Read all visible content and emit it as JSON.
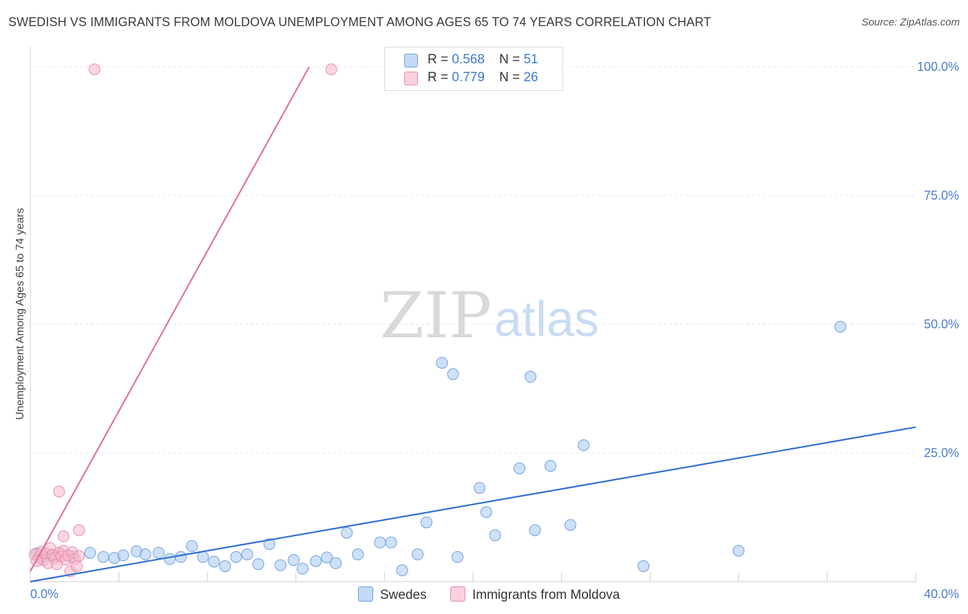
{
  "header": {
    "title": "SWEDISH VS IMMIGRANTS FROM MOLDOVA UNEMPLOYMENT AMONG AGES 65 TO 74 YEARS CORRELATION CHART",
    "source": "Source: ZipAtlas.com"
  },
  "watermark": {
    "zip": "ZIP",
    "atlas": "atlas"
  },
  "legend": {
    "r_label": "R =",
    "n_label": "N =",
    "series": [
      {
        "name": "Swedes",
        "r": "0.568",
        "n": "51",
        "color": "#a8c8f0",
        "edge": "#6b9ee0"
      },
      {
        "name": "Immigrants from Moldova",
        "r": "0.779",
        "n": "26",
        "color": "#f7b6c8",
        "edge": "#e88aa8"
      }
    ]
  },
  "chart_data": {
    "type": "scatter",
    "title": "SWEDISH VS IMMIGRANTS FROM MOLDOVA UNEMPLOYMENT AMONG AGES 65 TO 74 YEARS CORRELATION CHART",
    "xlabel": "",
    "ylabel": "Unemployment Among Ages 65 to 74 years",
    "xlim": [
      0,
      40
    ],
    "ylim": [
      0,
      100
    ],
    "x_tick_labels": [
      "0.0%",
      "40.0%"
    ],
    "y_tick_labels": [
      "25.0%",
      "50.0%",
      "75.0%",
      "100.0%"
    ],
    "y_ticks": [
      25,
      50,
      75,
      100
    ],
    "x_gridlines": [
      4,
      8,
      12,
      16,
      20,
      24,
      28,
      32,
      36,
      40
    ],
    "grid": true,
    "legend_position": "top-center",
    "series": [
      {
        "name": "Swedes",
        "color": "#a8c8f0",
        "edge": "#6b9ee0",
        "trend": {
          "x": [
            0,
            40
          ],
          "y": [
            0,
            30
          ],
          "color": "#2f6fd0"
        },
        "points": [
          [
            0.3,
            5.5
          ],
          [
            0.6,
            4.8
          ],
          [
            0.9,
            5.2
          ],
          [
            1.3,
            5.6
          ],
          [
            1.9,
            4.9
          ],
          [
            2.7,
            5.6
          ],
          [
            3.3,
            4.8
          ],
          [
            3.8,
            4.6
          ],
          [
            4.2,
            5.1
          ],
          [
            4.8,
            5.9
          ],
          [
            5.2,
            5.3
          ],
          [
            5.8,
            5.6
          ],
          [
            6.3,
            4.4
          ],
          [
            6.8,
            4.8
          ],
          [
            7.3,
            6.9
          ],
          [
            7.8,
            4.8
          ],
          [
            8.3,
            3.9
          ],
          [
            8.8,
            3.0
          ],
          [
            9.3,
            4.8
          ],
          [
            9.8,
            5.3
          ],
          [
            10.3,
            3.4
          ],
          [
            10.8,
            7.3
          ],
          [
            11.3,
            3.2
          ],
          [
            11.9,
            4.2
          ],
          [
            12.3,
            2.5
          ],
          [
            12.9,
            4.0
          ],
          [
            13.4,
            4.7
          ],
          [
            13.8,
            3.6
          ],
          [
            14.3,
            9.5
          ],
          [
            14.8,
            5.3
          ],
          [
            15.8,
            7.6
          ],
          [
            16.3,
            7.6
          ],
          [
            16.8,
            2.2
          ],
          [
            17.5,
            5.3
          ],
          [
            17.9,
            11.5
          ],
          [
            18.6,
            42.5
          ],
          [
            19.1,
            40.3
          ],
          [
            19.3,
            4.8
          ],
          [
            20.3,
            18.2
          ],
          [
            20.6,
            13.5
          ],
          [
            21.0,
            9.0
          ],
          [
            22.1,
            22.0
          ],
          [
            22.6,
            39.8
          ],
          [
            22.8,
            10.0
          ],
          [
            23.5,
            22.5
          ],
          [
            24.4,
            11.0
          ],
          [
            25.0,
            26.5
          ],
          [
            27.7,
            3.0
          ],
          [
            32.0,
            6.0
          ],
          [
            36.6,
            49.5
          ],
          [
            1.0,
            5.0
          ]
        ]
      },
      {
        "name": "Immigrants from Moldova",
        "color": "#f7b6c8",
        "edge": "#e88aa8",
        "trend": {
          "x": [
            0,
            12.6
          ],
          "y": [
            2,
            100
          ],
          "color": "#e27098"
        },
        "points": [
          [
            0.2,
            5.3
          ],
          [
            0.4,
            4.8
          ],
          [
            0.5,
            5.8
          ],
          [
            0.6,
            4.2
          ],
          [
            0.7,
            5.5
          ],
          [
            0.8,
            3.6
          ],
          [
            0.9,
            6.5
          ],
          [
            1.0,
            5.2
          ],
          [
            1.1,
            4.6
          ],
          [
            1.2,
            3.4
          ],
          [
            1.3,
            5.6
          ],
          [
            1.4,
            4.9
          ],
          [
            1.5,
            6.0
          ],
          [
            1.6,
            4.3
          ],
          [
            1.7,
            5.1
          ],
          [
            1.8,
            2.0
          ],
          [
            1.9,
            5.7
          ],
          [
            2.0,
            4.4
          ],
          [
            2.1,
            3.0
          ],
          [
            2.2,
            5.0
          ],
          [
            1.3,
            17.5
          ],
          [
            1.5,
            8.8
          ],
          [
            2.2,
            10.0
          ],
          [
            2.9,
            99.5
          ],
          [
            13.6,
            99.5
          ],
          [
            0.3,
            4.0
          ]
        ]
      }
    ]
  }
}
